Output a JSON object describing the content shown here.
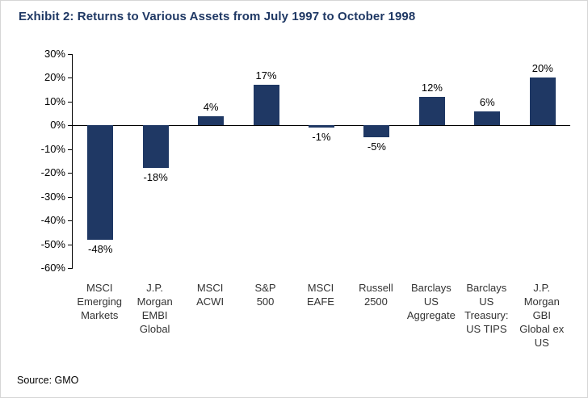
{
  "source": "Source: GMO",
  "colors": {
    "bar": "#1f3864",
    "title": "#1f3864",
    "axis": "#000000"
  },
  "chart_data": {
    "type": "bar",
    "title": "Exhibit 2: Returns to Various Assets from July 1997 to October 1998",
    "categories": [
      "MSCI Emerging Markets",
      "J.P. Morgan EMBI Global",
      "MSCI ACWI",
      "S&P 500",
      "MSCI EAFE",
      "Russell 2500",
      "Barclays US Aggregate",
      "Barclays US Treasury: US TIPS",
      "J.P. Morgan GBI Global ex US"
    ],
    "category_lines": [
      [
        "MSCI",
        "Emerging",
        "Markets"
      ],
      [
        "J.P.",
        "Morgan",
        "EMBI",
        "Global"
      ],
      [
        "MSCI",
        "ACWI"
      ],
      [
        "S&P",
        "500"
      ],
      [
        "MSCI",
        "EAFE"
      ],
      [
        "Russell",
        "2500"
      ],
      [
        "Barclays",
        "US",
        "Aggregate"
      ],
      [
        "Barclays",
        "US",
        "Treasury:",
        "US TIPS"
      ],
      [
        "J.P.",
        "Morgan",
        "GBI",
        "Global ex",
        "US"
      ]
    ],
    "values": [
      -48,
      -18,
      4,
      17,
      -1,
      -5,
      12,
      6,
      20
    ],
    "value_labels": [
      "-48%",
      "-18%",
      "4%",
      "17%",
      "-1%",
      "-5%",
      "12%",
      "6%",
      "20%"
    ],
    "xlabel": "",
    "ylabel": "",
    "ylim": [
      -60,
      30
    ],
    "ytick_step": 10,
    "ytick_labels": [
      "30%",
      "20%",
      "10%",
      "0%",
      "-10%",
      "-20%",
      "-30%",
      "-40%",
      "-50%",
      "-60%"
    ],
    "grid": false,
    "legend": null
  }
}
